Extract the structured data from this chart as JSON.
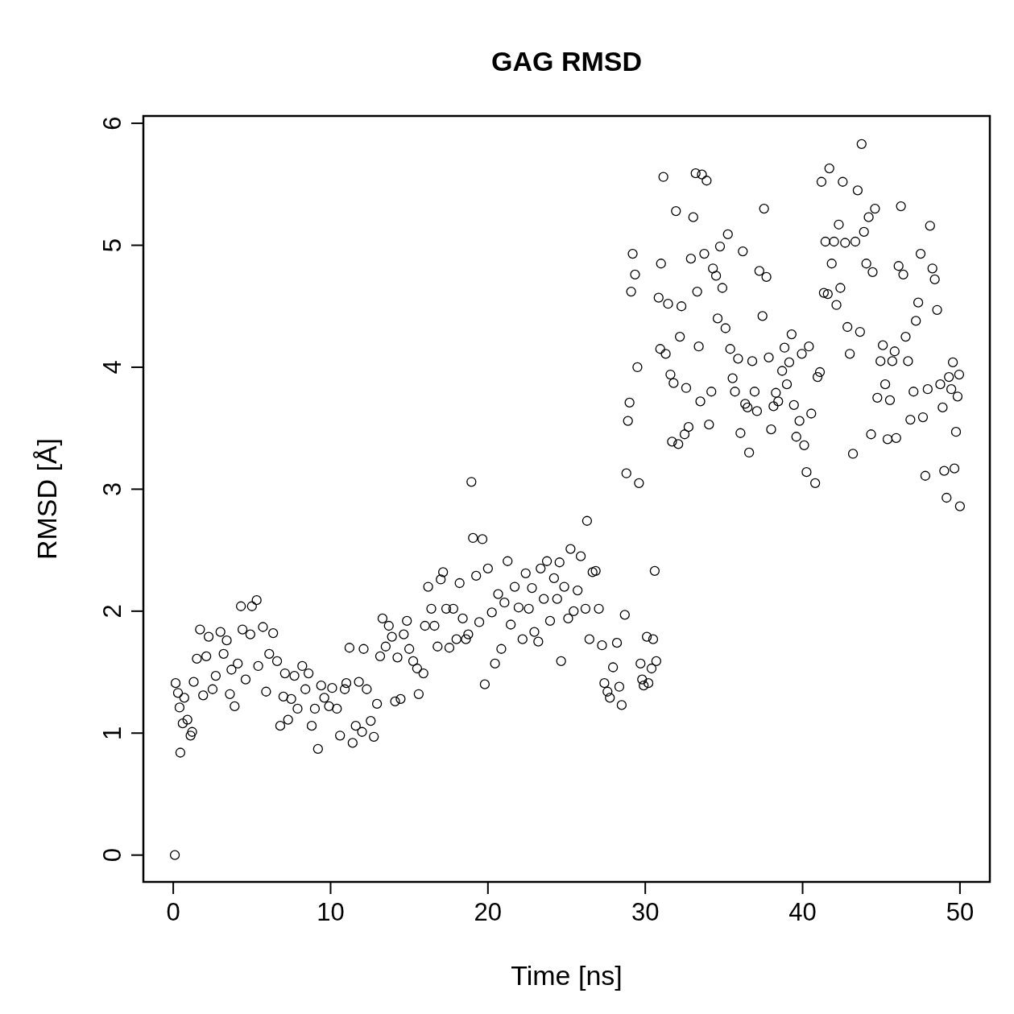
{
  "chart_data": {
    "type": "scatter",
    "title": "GAG RMSD",
    "xlabel": "Time [ns]",
    "ylabel": "RMSD [Å]",
    "marker": "circle",
    "grid": false,
    "xlim": [
      -1.9,
      51.9
    ],
    "ylim": [
      -0.22,
      6.06
    ],
    "xticks": [
      0,
      10,
      20,
      30,
      40,
      50
    ],
    "yticks": [
      0,
      1,
      2,
      3,
      4,
      5,
      6
    ],
    "series": [
      {
        "color": "#000000",
        "x": [
          0.1,
          0.15,
          0.3,
          0.4,
          0.45,
          0.6,
          0.7,
          0.9,
          1.1,
          1.2,
          1.3,
          1.5,
          1.7,
          1.9,
          2.1,
          2.25,
          2.5,
          2.7,
          3.0,
          3.2,
          3.4,
          3.6,
          3.7,
          3.9,
          4.1,
          4.3,
          4.4,
          4.6,
          4.9,
          5.0,
          5.3,
          5.4,
          5.7,
          5.9,
          6.1,
          6.35,
          6.6,
          6.8,
          7.0,
          7.1,
          7.3,
          7.5,
          7.7,
          7.9,
          8.2,
          8.4,
          8.6,
          8.8,
          9.0,
          9.2,
          9.4,
          9.6,
          9.9,
          10.1,
          10.4,
          10.6,
          10.9,
          11.0,
          11.2,
          11.4,
          11.6,
          11.8,
          12.0,
          12.1,
          12.3,
          12.55,
          12.75,
          12.95,
          13.15,
          13.3,
          13.5,
          13.7,
          13.9,
          14.1,
          14.25,
          14.45,
          14.65,
          14.85,
          15.0,
          15.25,
          15.5,
          15.6,
          15.9,
          16.0,
          16.2,
          16.4,
          16.6,
          16.8,
          17.0,
          17.15,
          17.35,
          17.55,
          17.8,
          18.0,
          18.2,
          18.4,
          18.6,
          18.75,
          18.95,
          19.05,
          19.25,
          19.45,
          19.65,
          19.8,
          20.0,
          20.25,
          20.45,
          20.65,
          20.85,
          21.05,
          21.25,
          21.45,
          21.7,
          21.95,
          22.2,
          22.4,
          22.6,
          22.8,
          22.95,
          23.2,
          23.35,
          23.55,
          23.75,
          23.95,
          24.2,
          24.4,
          24.55,
          24.65,
          24.85,
          25.1,
          25.25,
          25.45,
          25.7,
          25.9,
          26.2,
          26.3,
          26.45,
          26.65,
          26.85,
          27.05,
          27.25,
          27.4,
          27.6,
          27.75,
          27.95,
          28.2,
          28.35,
          28.5,
          28.7,
          28.8,
          28.9,
          29.0,
          29.1,
          29.2,
          29.35,
          29.5,
          29.6,
          29.7,
          29.8,
          29.9,
          30.1,
          30.2,
          30.4,
          30.5,
          30.6,
          30.7,
          30.85,
          30.95,
          31.0,
          31.15,
          31.3,
          31.45,
          31.6,
          31.7,
          31.8,
          31.95,
          32.1,
          32.2,
          32.3,
          32.5,
          32.6,
          32.75,
          32.9,
          33.05,
          33.2,
          33.3,
          33.4,
          33.5,
          33.6,
          33.75,
          33.9,
          34.05,
          34.2,
          34.3,
          34.5,
          34.6,
          34.75,
          34.9,
          35.1,
          35.25,
          35.4,
          35.55,
          35.7,
          35.9,
          36.05,
          36.2,
          36.35,
          36.5,
          36.6,
          36.8,
          36.95,
          37.1,
          37.25,
          37.45,
          37.55,
          37.7,
          37.85,
          38.0,
          38.15,
          38.3,
          38.45,
          38.7,
          38.85,
          39.0,
          39.15,
          39.3,
          39.45,
          39.6,
          39.8,
          39.95,
          40.1,
          40.25,
          40.4,
          40.55,
          40.8,
          40.95,
          41.1,
          41.2,
          41.35,
          41.45,
          41.6,
          41.7,
          41.85,
          42.0,
          42.15,
          42.3,
          42.4,
          42.55,
          42.7,
          42.85,
          43.0,
          43.2,
          43.35,
          43.5,
          43.65,
          43.75,
          43.9,
          44.05,
          44.2,
          44.35,
          44.45,
          44.6,
          44.75,
          44.95,
          45.1,
          45.25,
          45.4,
          45.55,
          45.7,
          45.85,
          45.95,
          46.1,
          46.25,
          46.4,
          46.55,
          46.7,
          46.85,
          47.05,
          47.2,
          47.35,
          47.5,
          47.65,
          47.8,
          47.95,
          48.1,
          48.25,
          48.4,
          48.55,
          48.75,
          48.9,
          49.0,
          49.15,
          49.3,
          49.45,
          49.55,
          49.65,
          49.75,
          49.85,
          49.95,
          50.0
        ],
        "values": [
          0,
          1.41,
          1.33,
          1.21,
          0.84,
          1.08,
          1.29,
          1.11,
          0.98,
          1.01,
          1.42,
          1.61,
          1.85,
          1.31,
          1.63,
          1.79,
          1.36,
          1.47,
          1.83,
          1.65,
          1.76,
          1.32,
          1.52,
          1.22,
          1.57,
          2.04,
          1.85,
          1.44,
          1.81,
          2.04,
          2.09,
          1.55,
          1.87,
          1.34,
          1.65,
          1.82,
          1.59,
          1.06,
          1.3,
          1.49,
          1.11,
          1.28,
          1.47,
          1.2,
          1.55,
          1.36,
          1.49,
          1.06,
          1.2,
          0.87,
          1.39,
          1.29,
          1.22,
          1.37,
          1.2,
          0.98,
          1.36,
          1.41,
          1.7,
          0.92,
          1.06,
          1.42,
          1.01,
          1.69,
          1.36,
          1.1,
          0.97,
          1.24,
          1.63,
          1.94,
          1.71,
          1.88,
          1.79,
          1.26,
          1.62,
          1.28,
          1.81,
          1.92,
          1.69,
          1.59,
          1.53,
          1.32,
          1.49,
          1.88,
          2.2,
          2.02,
          1.88,
          1.71,
          2.26,
          2.32,
          2.02,
          1.7,
          2.02,
          1.77,
          2.23,
          1.94,
          1.77,
          1.81,
          3.06,
          2.6,
          2.29,
          1.91,
          2.59,
          1.4,
          2.35,
          1.99,
          1.57,
          2.14,
          1.69,
          2.07,
          2.41,
          1.89,
          2.2,
          2.03,
          1.77,
          2.31,
          2.02,
          2.19,
          1.83,
          1.75,
          2.35,
          2.1,
          2.41,
          1.92,
          2.27,
          2.1,
          2.4,
          1.59,
          2.2,
          1.94,
          2.51,
          2.0,
          2.17,
          2.45,
          2.02,
          2.74,
          1.77,
          2.32,
          2.33,
          2.02,
          1.72,
          1.41,
          1.34,
          1.29,
          1.54,
          1.74,
          1.38,
          1.23,
          1.97,
          3.13,
          3.56,
          3.71,
          4.62,
          4.93,
          4.76,
          4.0,
          3.05,
          1.57,
          1.44,
          1.39,
          1.79,
          1.41,
          1.53,
          1.77,
          2.33,
          1.59,
          4.57,
          4.15,
          4.85,
          5.56,
          4.11,
          4.52,
          3.94,
          3.39,
          3.87,
          5.28,
          3.37,
          4.25,
          4.5,
          3.45,
          3.83,
          3.51,
          4.89,
          5.23,
          5.59,
          4.62,
          4.17,
          3.72,
          5.58,
          4.93,
          5.53,
          3.53,
          3.8,
          4.81,
          4.75,
          4.4,
          4.99,
          4.65,
          4.32,
          5.09,
          4.15,
          3.91,
          3.8,
          4.07,
          3.46,
          4.95,
          3.7,
          3.67,
          3.3,
          4.05,
          3.8,
          3.64,
          4.79,
          4.42,
          5.3,
          4.74,
          4.08,
          3.49,
          3.68,
          3.79,
          3.72,
          3.97,
          4.16,
          3.86,
          4.04,
          4.27,
          3.69,
          3.43,
          3.56,
          4.11,
          3.36,
          3.14,
          4.17,
          3.62,
          3.05,
          3.92,
          3.96,
          5.52,
          4.61,
          5.03,
          4.6,
          5.63,
          4.85,
          5.03,
          4.51,
          5.17,
          4.65,
          5.52,
          5.02,
          4.33,
          4.11,
          3.29,
          5.03,
          5.45,
          4.29,
          5.83,
          5.11,
          4.85,
          5.23,
          3.45,
          4.78,
          5.3,
          3.75,
          4.05,
          4.18,
          3.86,
          3.41,
          3.73,
          4.05,
          4.13,
          3.42,
          4.83,
          5.32,
          4.76,
          4.25,
          4.05,
          3.57,
          3.8,
          4.38,
          4.53,
          4.93,
          3.59,
          3.11,
          3.82,
          5.16,
          4.81,
          4.72,
          4.47,
          3.86,
          3.67,
          3.15,
          2.93,
          3.92,
          3.82,
          4.04,
          3.17,
          3.47,
          3.76,
          3.94,
          2.86
        ]
      }
    ]
  }
}
